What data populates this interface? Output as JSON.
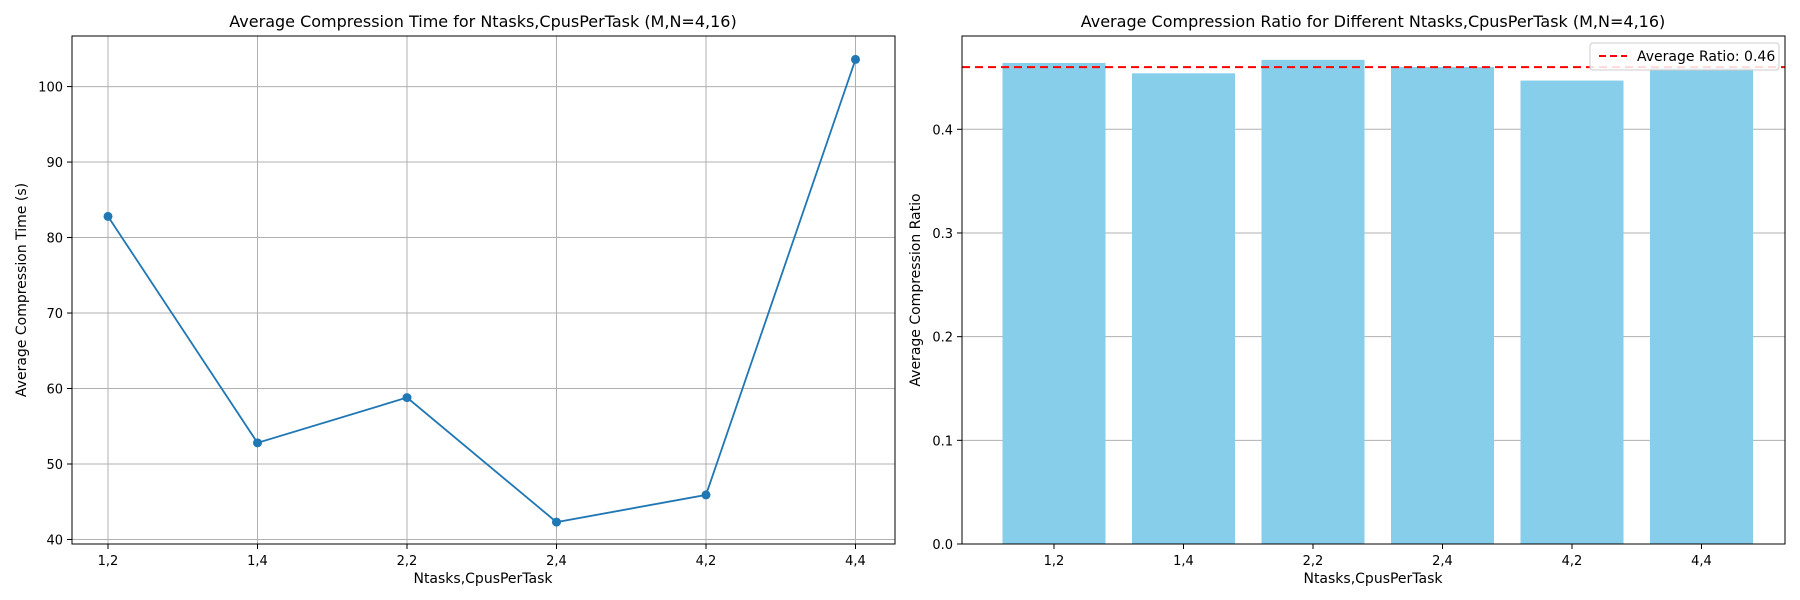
{
  "chart_data": [
    {
      "type": "line",
      "title": "Average Compression Time for Ntasks,CpusPerTask (M,N=4,16)",
      "xlabel": "Ntasks,CpusPerTask",
      "ylabel": "Average Compression Time (s)",
      "categories": [
        "1,2",
        "1,4",
        "2,2",
        "2,4",
        "4,2",
        "4,4"
      ],
      "series": [
        {
          "values": [
            82.8,
            52.8,
            58.8,
            42.3,
            45.9,
            103.6
          ]
        }
      ],
      "ylim": [
        39.4,
        106.7
      ],
      "yticks": [
        40,
        50,
        60,
        70,
        80,
        90,
        100
      ],
      "grid": true,
      "color": "#1f77b4"
    },
    {
      "type": "bar",
      "title": "Average Compression Ratio for Different Ntasks,CpusPerTask (M,N=4,16)",
      "xlabel": "Ntasks,CpusPerTask",
      "ylabel": "Average Compression Ratio",
      "categories": [
        "1,2",
        "1,4",
        "2,2",
        "2,4",
        "4,2",
        "4,4"
      ],
      "values": [
        0.464,
        0.454,
        0.467,
        0.46,
        0.447,
        0.459
      ],
      "ylim": [
        0,
        0.49
      ],
      "yticks": [
        "0.0",
        "0.1",
        "0.2",
        "0.3",
        "0.4"
      ],
      "grid": "y",
      "color": "#87ceeb",
      "reference_line": {
        "value": 0.46,
        "label": "Average Ratio: 0.46",
        "color": "#ff0000",
        "style": "dashed"
      },
      "legend": "top-right"
    }
  ]
}
